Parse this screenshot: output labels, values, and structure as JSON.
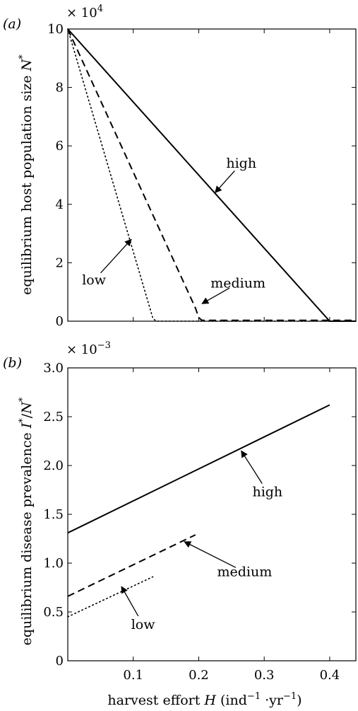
{
  "chart_data": [
    {
      "panel_label": "(a)",
      "type": "line",
      "scale_label": "× 10",
      "scale_exp": "4",
      "ylabel": {
        "text": "equilibrium host population size ",
        "var": "N",
        "sup": "*"
      },
      "xlim": [
        0,
        0.44
      ],
      "ylim": [
        0,
        10
      ],
      "xticks": [
        0.1,
        0.2,
        0.3,
        0.4
      ],
      "xticklabels": [
        "",
        "",
        "",
        ""
      ],
      "yticks": [
        0,
        2,
        4,
        6,
        8,
        10
      ],
      "yticklabels": [
        "0",
        "2",
        "4",
        "6",
        "8",
        "10"
      ],
      "series": [
        {
          "name": "high",
          "dash": "solid",
          "x": [
            0,
            0.4,
            0.44
          ],
          "y": [
            10,
            0,
            0
          ]
        },
        {
          "name": "medium",
          "dash": "dashed",
          "x": [
            0,
            0.195,
            0.2,
            0.205,
            0.44
          ],
          "y": [
            10,
            0.45,
            0.12,
            0.03,
            0.03
          ]
        },
        {
          "name": "low",
          "dash": "dotted",
          "x": [
            0,
            0.13,
            0.135,
            0.44
          ],
          "y": [
            10,
            0.1,
            0.0,
            0.0
          ]
        }
      ],
      "annotations": [
        {
          "text": "high",
          "text_at": [
            0.265,
            5.4
          ],
          "arrow_to": [
            0.225,
            4.4
          ]
        },
        {
          "text": "medium",
          "text_at": [
            0.26,
            1.3
          ],
          "arrow_to": [
            0.205,
            0.6
          ]
        },
        {
          "text": "low",
          "text_at": [
            0.04,
            1.4
          ],
          "arrow_to": [
            0.097,
            2.8
          ]
        }
      ]
    },
    {
      "panel_label": "(b)",
      "type": "line",
      "scale_label": "× 10",
      "scale_exp": "−3",
      "ylabel": {
        "text": "equilibrium disease prevalence ",
        "var": "I",
        "sup": "*",
        "mid": "/",
        "var2": "N",
        "sup2": "*"
      },
      "xlabel": {
        "text": "harvest effort ",
        "var": "H",
        "unit_open": " (ind",
        "sup1": "−1",
        "mid": " ·yr",
        "sup2": "−1",
        "unit_close": ")"
      },
      "xlim": [
        0,
        0.44
      ],
      "ylim": [
        0,
        3
      ],
      "xticks": [
        0.1,
        0.2,
        0.3,
        0.4
      ],
      "xticklabels": [
        "0.1",
        "0.2",
        "0.3",
        "0.4"
      ],
      "yticks": [
        0,
        0.5,
        1.0,
        1.5,
        2.0,
        2.5,
        3.0
      ],
      "yticklabels": [
        "0",
        "0.5",
        "1.0",
        "1.5",
        "2.0",
        "2.5",
        "3.0"
      ],
      "series": [
        {
          "name": "high",
          "dash": "solid",
          "x": [
            0,
            0.4
          ],
          "y": [
            1.31,
            2.62
          ]
        },
        {
          "name": "medium",
          "dash": "dashed",
          "x": [
            0,
            0.195
          ],
          "y": [
            0.66,
            1.29
          ]
        },
        {
          "name": "low",
          "dash": "dotted",
          "x": [
            0,
            0.13
          ],
          "y": [
            0.45,
            0.86
          ]
        }
      ],
      "annotations": [
        {
          "text": "high",
          "text_at": [
            0.305,
            1.73
          ],
          "arrow_to": [
            0.265,
            2.15
          ]
        },
        {
          "text": "medium",
          "text_at": [
            0.27,
            0.91
          ],
          "arrow_to": [
            0.178,
            1.22
          ]
        },
        {
          "text": "low",
          "text_at": [
            0.115,
            0.37
          ],
          "arrow_to": [
            0.082,
            0.76
          ]
        }
      ]
    }
  ]
}
